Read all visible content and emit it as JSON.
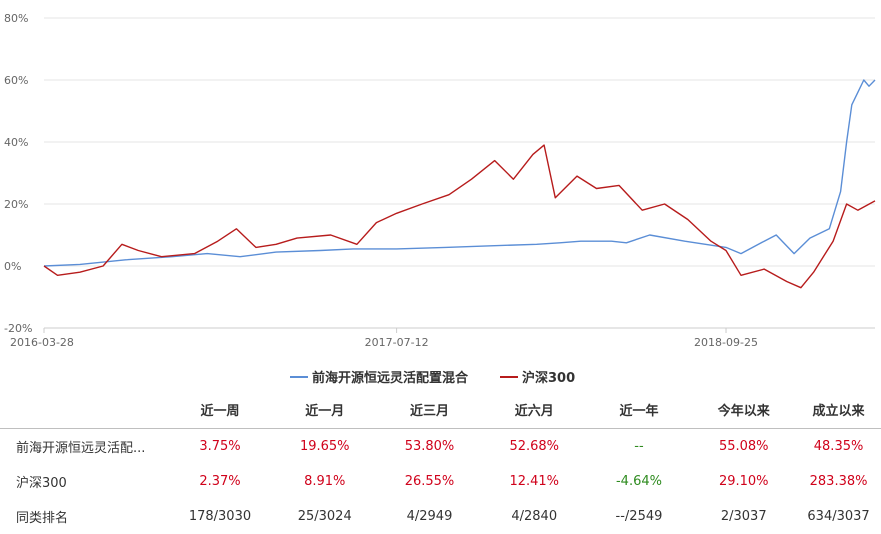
{
  "colors": {
    "fund": "#5b8ed6",
    "index": "#b71c1c",
    "up": "#d0021b",
    "down": "#2e8b1f",
    "grid": "#e6e6e6"
  },
  "chart_data": {
    "type": "line",
    "title": "",
    "xlabel": "",
    "ylabel": "",
    "ylim": [
      -20,
      80
    ],
    "yticks": [
      "80%",
      "60%",
      "40%",
      "20%",
      "0%",
      "-20%"
    ],
    "ytick_values": [
      80,
      60,
      40,
      20,
      0,
      -20
    ],
    "xticks": [
      "2016-03-28",
      "2017-07-12",
      "2018-09-25"
    ],
    "xtick_dates": [
      "2016-03-28",
      "2017-07-12",
      "2018-09-25"
    ],
    "xlim": [
      "2016-03-28",
      "2019-04-12"
    ],
    "grid": "horizontal",
    "legend_position": "bottom-center",
    "series": [
      {
        "name": "前海开源恒远灵活配置混合",
        "color": "#5b8ed6",
        "x": [
          "2016-03-28",
          "2016-05-15",
          "2016-07-15",
          "2016-09-15",
          "2016-11-01",
          "2016-12-15",
          "2017-02-01",
          "2017-04-01",
          "2017-05-15",
          "2017-07-12",
          "2017-09-15",
          "2017-11-15",
          "2018-01-15",
          "2018-02-15",
          "2018-03-15",
          "2018-04-25",
          "2018-05-15",
          "2018-06-15",
          "2018-08-01",
          "2018-09-25",
          "2018-10-15",
          "2018-11-15",
          "2018-12-01",
          "2018-12-25",
          "2019-01-15",
          "2019-02-10",
          "2019-02-25",
          "2019-03-05",
          "2019-03-12",
          "2019-03-20",
          "2019-03-28",
          "2019-04-04",
          "2019-04-12"
        ],
        "y": [
          0,
          0.5,
          2,
          3,
          4,
          3,
          4.5,
          5,
          5.5,
          5.5,
          6,
          6.5,
          7,
          7.5,
          8,
          8,
          7.5,
          10,
          8,
          6,
          4,
          8,
          10,
          4,
          9,
          12,
          24,
          40,
          52,
          56,
          60,
          58,
          60
        ]
      },
      {
        "name": "沪深300",
        "color": "#b71c1c",
        "x": [
          "2016-03-28",
          "2016-04-15",
          "2016-05-15",
          "2016-06-15",
          "2016-07-10",
          "2016-08-01",
          "2016-09-01",
          "2016-10-15",
          "2016-11-15",
          "2016-12-10",
          "2017-01-05",
          "2017-02-01",
          "2017-03-01",
          "2017-04-15",
          "2017-05-20",
          "2017-06-15",
          "2017-07-12",
          "2017-08-15",
          "2017-09-20",
          "2017-10-20",
          "2017-11-20",
          "2017-12-15",
          "2018-01-10",
          "2018-01-25",
          "2018-02-09",
          "2018-03-10",
          "2018-04-05",
          "2018-05-05",
          "2018-06-05",
          "2018-07-05",
          "2018-08-05",
          "2018-09-05",
          "2018-09-25",
          "2018-10-15",
          "2018-11-15",
          "2018-12-15",
          "2019-01-03",
          "2019-01-20",
          "2019-02-15",
          "2019-03-05",
          "2019-03-20",
          "2019-04-12"
        ],
        "y": [
          0,
          -3,
          -2,
          0,
          7,
          5,
          3,
          4,
          8,
          12,
          6,
          7,
          9,
          10,
          7,
          14,
          17,
          20,
          23,
          28,
          34,
          28,
          36,
          39,
          22,
          29,
          25,
          26,
          18,
          20,
          15,
          8,
          5,
          -3,
          -1,
          -5,
          -7,
          -2,
          8,
          20,
          18,
          21
        ]
      }
    ]
  },
  "table": {
    "headers": [
      "",
      "近一周",
      "近一月",
      "近三月",
      "近六月",
      "近一年",
      "今年以来",
      "成立以来"
    ],
    "rows": [
      {
        "name": "前海开源恒远灵活配...",
        "cells": [
          {
            "text": "3.75%",
            "tone": "up"
          },
          {
            "text": "19.65%",
            "tone": "up"
          },
          {
            "text": "53.80%",
            "tone": "up"
          },
          {
            "text": "52.68%",
            "tone": "up"
          },
          {
            "text": "--",
            "tone": "flat"
          },
          {
            "text": "55.08%",
            "tone": "up"
          },
          {
            "text": "48.35%",
            "tone": "up"
          }
        ]
      },
      {
        "name": "沪深300",
        "cells": [
          {
            "text": "2.37%",
            "tone": "up"
          },
          {
            "text": "8.91%",
            "tone": "up"
          },
          {
            "text": "26.55%",
            "tone": "up"
          },
          {
            "text": "12.41%",
            "tone": "up"
          },
          {
            "text": "-4.64%",
            "tone": "down"
          },
          {
            "text": "29.10%",
            "tone": "up"
          },
          {
            "text": "283.38%",
            "tone": "up"
          }
        ]
      },
      {
        "name": "同类排名",
        "cells": [
          {
            "text": "178/3030",
            "tone": "plain"
          },
          {
            "text": "25/3024",
            "tone": "plain"
          },
          {
            "text": "4/2949",
            "tone": "plain"
          },
          {
            "text": "4/2840",
            "tone": "plain"
          },
          {
            "text": "--/2549",
            "tone": "plain"
          },
          {
            "text": "2/3037",
            "tone": "plain"
          },
          {
            "text": "634/3037",
            "tone": "plain"
          }
        ]
      }
    ]
  }
}
